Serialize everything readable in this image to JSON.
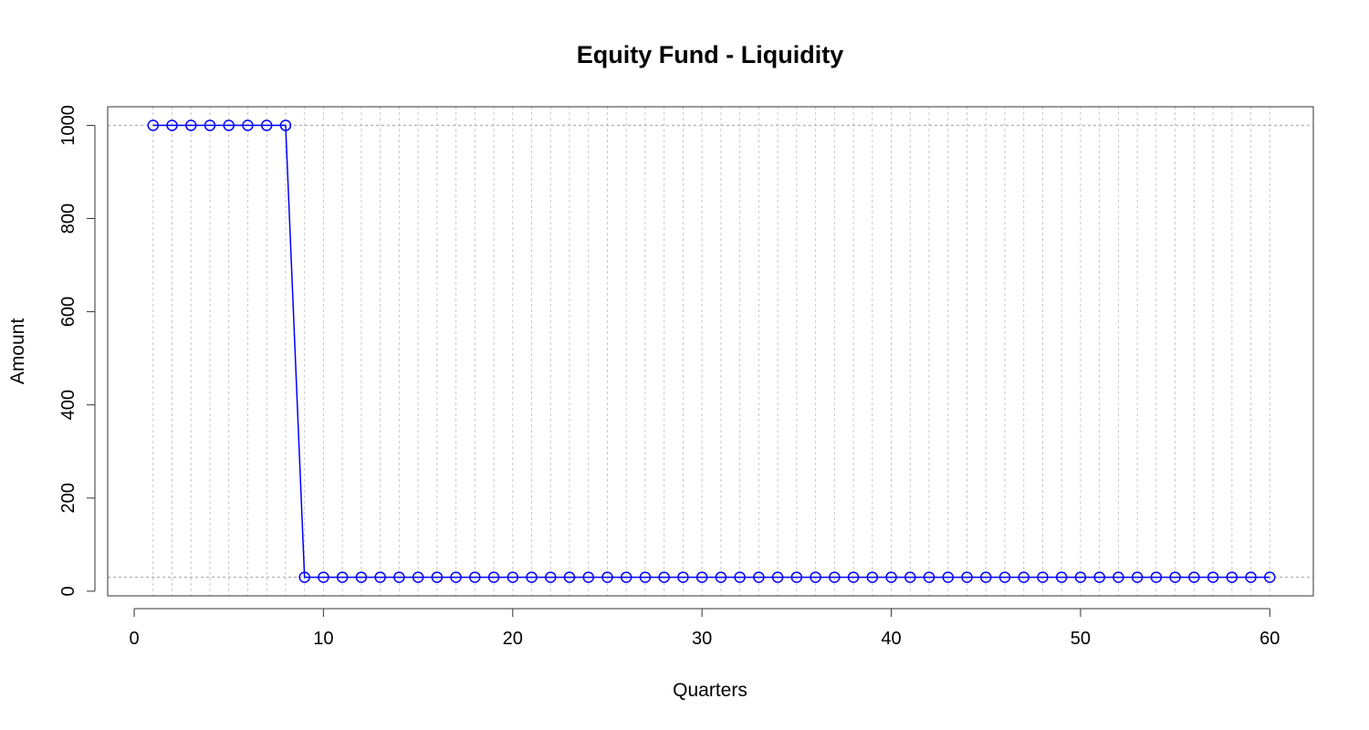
{
  "chart_data": {
    "type": "line",
    "title": "Equity Fund - Liquidity",
    "xlabel": "Quarters",
    "ylabel": "Amount",
    "xlim": [
      -1.4,
      62.3
    ],
    "ylim": [
      -10,
      1040
    ],
    "x_ticks": [
      "0",
      "10",
      "20",
      "30",
      "40",
      "50",
      "60"
    ],
    "y_ticks": [
      "0",
      "200",
      "400",
      "600",
      "800",
      "1000"
    ],
    "grid": {
      "vertical_dashed_at_each_quarter": true,
      "horizontal_dashed_at": [
        1000,
        30
      ]
    },
    "series": [
      {
        "color": "#0000ff",
        "marker": "open-circle",
        "x": [
          1,
          2,
          3,
          4,
          5,
          6,
          7,
          8,
          9,
          10,
          11,
          12,
          13,
          14,
          15,
          16,
          17,
          18,
          19,
          20,
          21,
          22,
          23,
          24,
          25,
          26,
          27,
          28,
          29,
          30,
          31,
          32,
          33,
          34,
          35,
          36,
          37,
          38,
          39,
          40,
          41,
          42,
          43,
          44,
          45,
          46,
          47,
          48,
          49,
          50,
          51,
          52,
          53,
          54,
          55,
          56,
          57,
          58,
          59,
          60
        ],
        "values": [
          1000,
          1000,
          1000,
          1000,
          1000,
          1000,
          1000,
          1000,
          30,
          30,
          30,
          30,
          30,
          30,
          30,
          30,
          30,
          30,
          30,
          30,
          30,
          30,
          30,
          30,
          30,
          30,
          30,
          30,
          30,
          30,
          30,
          30,
          30,
          30,
          30,
          30,
          30,
          30,
          30,
          30,
          30,
          30,
          30,
          30,
          30,
          30,
          30,
          30,
          30,
          30,
          30,
          30,
          30,
          30,
          30,
          30,
          30,
          30,
          30,
          30
        ]
      }
    ]
  }
}
